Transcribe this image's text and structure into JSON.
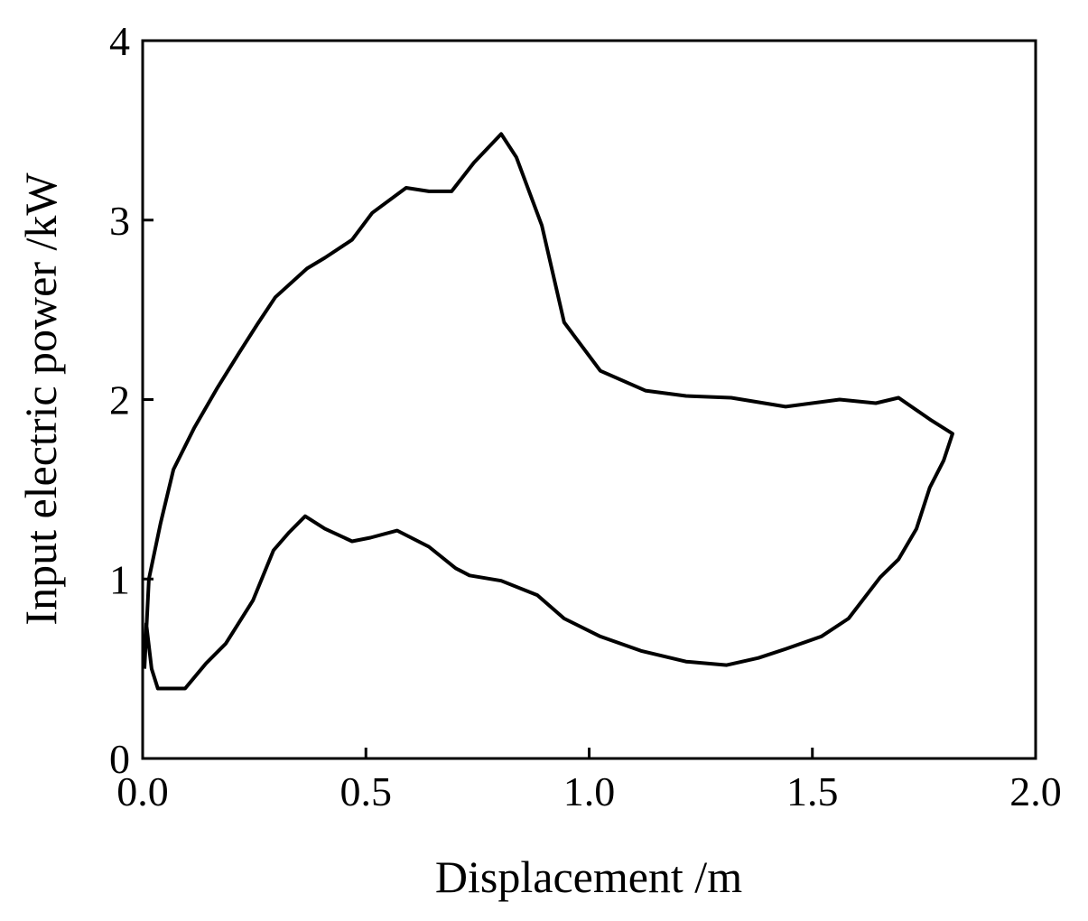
{
  "chart_data": {
    "type": "line",
    "x_label": "Displacement /m",
    "y_label": "Input electric power /kW",
    "xlim": [
      0,
      2
    ],
    "ylim": [
      0,
      4
    ],
    "xticks": [
      {
        "value": 0,
        "label": "0.0"
      },
      0.5,
      {
        "value": 1,
        "label": "1.0"
      },
      1.5,
      {
        "value": 2,
        "label": "2.0"
      }
    ],
    "yticks": [
      0,
      1,
      2,
      3,
      4
    ],
    "series": [
      {
        "color": "#000000",
        "x": [
          0.004,
          0.014,
          0.04,
          0.069,
          0.115,
          0.166,
          0.216,
          0.257,
          0.297,
          0.368,
          0.408,
          0.469,
          0.514,
          0.59,
          0.641,
          0.692,
          0.742,
          0.803,
          0.837,
          0.894,
          0.944,
          1.025,
          1.126,
          1.217,
          1.318,
          1.44,
          1.561,
          1.642,
          1.693,
          1.763,
          1.814,
          1.794,
          1.763,
          1.733,
          1.693,
          1.652,
          1.581,
          1.52,
          1.44,
          1.379,
          1.308,
          1.217,
          1.116,
          1.025,
          0.944,
          0.884,
          0.803,
          0.732,
          0.701,
          0.641,
          0.57,
          0.51,
          0.469,
          0.408,
          0.364,
          0.328,
          0.293,
          0.247,
          0.186,
          0.142,
          0.095,
          0.034,
          0.02,
          0.008,
          0.004
        ],
        "values": [
          0.5,
          1.0,
          1.31,
          1.61,
          1.84,
          2.06,
          2.26,
          2.42,
          2.57,
          2.73,
          2.79,
          2.89,
          3.04,
          3.18,
          3.16,
          3.16,
          3.32,
          3.48,
          3.35,
          2.97,
          2.43,
          2.16,
          2.05,
          2.02,
          2.01,
          1.96,
          2.0,
          1.98,
          2.01,
          1.89,
          1.81,
          1.66,
          1.51,
          1.28,
          1.11,
          1.01,
          0.78,
          0.68,
          0.61,
          0.56,
          0.52,
          0.54,
          0.6,
          0.68,
          0.78,
          0.91,
          0.99,
          1.02,
          1.06,
          1.18,
          1.27,
          1.23,
          1.21,
          1.28,
          1.35,
          1.26,
          1.16,
          0.88,
          0.64,
          0.53,
          0.39,
          0.39,
          0.5,
          0.75,
          0.5
        ]
      }
    ]
  }
}
